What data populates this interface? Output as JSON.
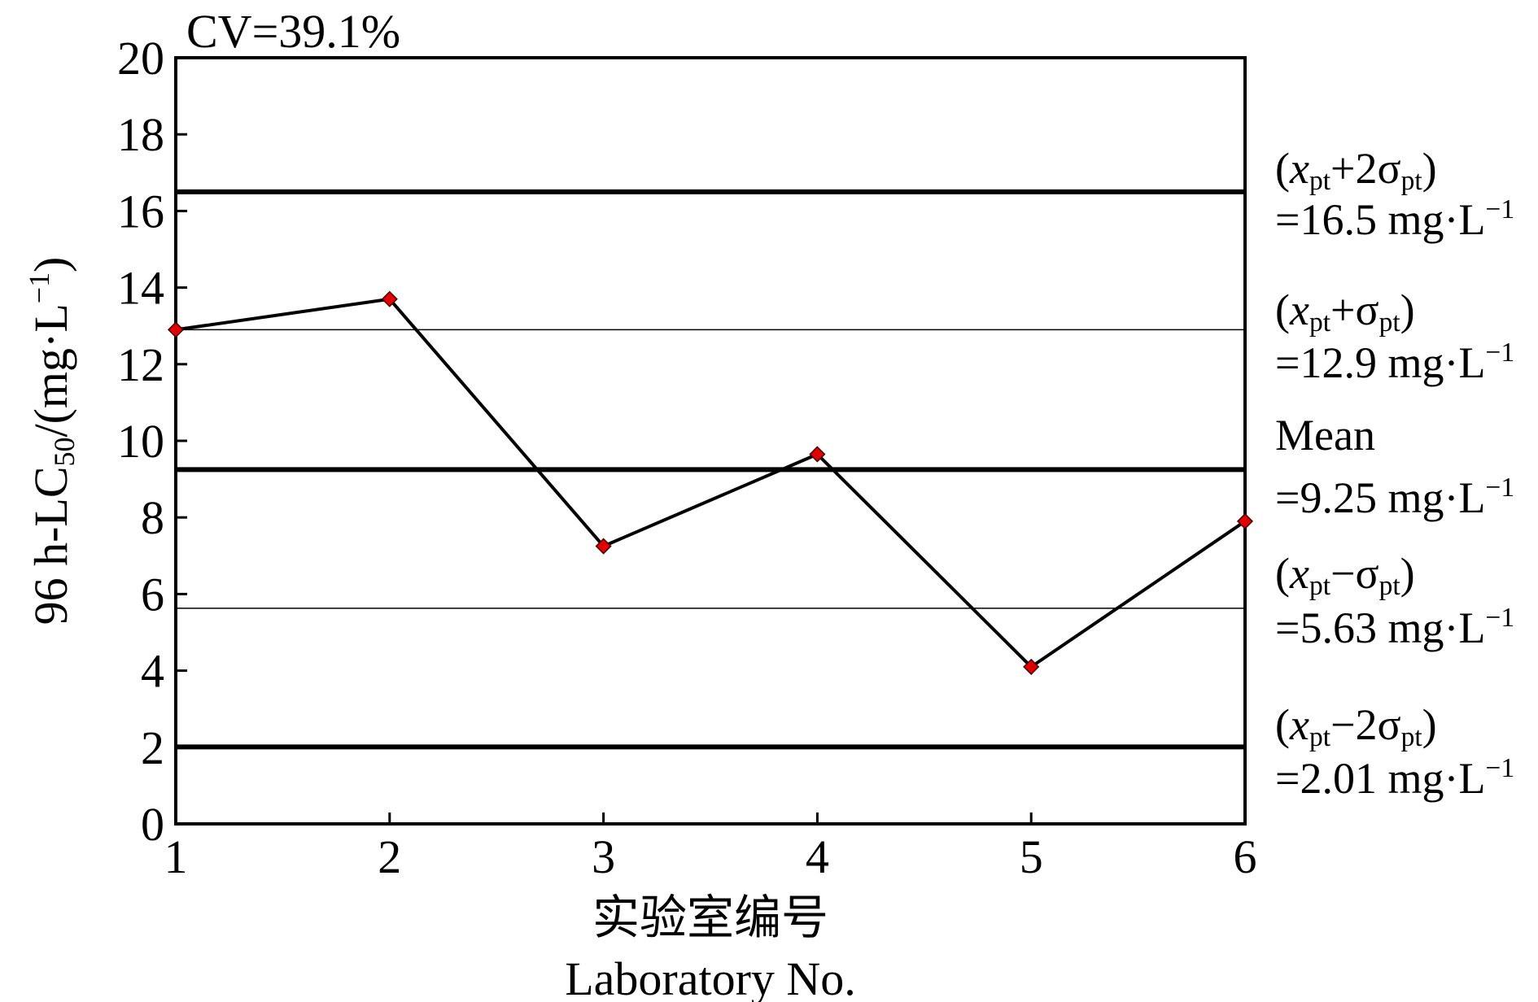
{
  "chart_data": {
    "type": "line",
    "annotation": "CV=39.1%",
    "y_label": [
      {
        "text": "96 h-LC"
      },
      {
        "text": "50",
        "style": "sub"
      },
      {
        "text": "/(mg·L"
      },
      {
        "text": "−1",
        "style": "sup"
      },
      {
        "text": ")"
      }
    ],
    "x_label": [
      "实验室编号",
      "Laboratory No."
    ],
    "x": [
      1,
      2,
      3,
      4,
      5,
      6
    ],
    "xlim": [
      1,
      6
    ],
    "xticks": [
      1,
      2,
      3,
      4,
      5,
      6
    ],
    "ylim": [
      0,
      20
    ],
    "yticks": [
      0,
      2,
      4,
      6,
      8,
      10,
      12,
      14,
      16,
      18,
      20
    ],
    "series": [
      {
        "color": "#e00000",
        "values": [
          12.9,
          13.7,
          7.25,
          9.65,
          4.1,
          7.9
        ]
      }
    ],
    "reference_lines": [
      {
        "value": 16.5,
        "style": "thick",
        "label": [
          {
            "text": "("
          },
          {
            "text": "x",
            "style": "italic"
          },
          {
            "text": "pt",
            "style": "sub"
          },
          {
            "text": "+2σ"
          },
          {
            "text": "pt",
            "style": "sub"
          },
          {
            "text": ")"
          }
        ],
        "value_label": [
          {
            "text": "=16.5 mg·L"
          },
          {
            "text": "−1",
            "style": "sup"
          }
        ]
      },
      {
        "value": 12.9,
        "style": "thin",
        "label": [
          {
            "text": "("
          },
          {
            "text": "x",
            "style": "italic"
          },
          {
            "text": "pt",
            "style": "sub"
          },
          {
            "text": "+σ"
          },
          {
            "text": "pt",
            "style": "sub"
          },
          {
            "text": ")"
          }
        ],
        "value_label": [
          {
            "text": "=12.9 mg·L"
          },
          {
            "text": "−1",
            "style": "sup"
          }
        ]
      },
      {
        "value": 9.25,
        "style": "thick",
        "label": [
          {
            "text": "Mean"
          }
        ],
        "value_label": [
          {
            "text": "=9.25 mg·L"
          },
          {
            "text": "−1",
            "style": "sup"
          }
        ]
      },
      {
        "value": 5.63,
        "style": "thin",
        "label": [
          {
            "text": "("
          },
          {
            "text": "x",
            "style": "italic"
          },
          {
            "text": "pt",
            "style": "sub"
          },
          {
            "text": "−σ"
          },
          {
            "text": "pt",
            "style": "sub"
          },
          {
            "text": ")"
          }
        ],
        "value_label": [
          {
            "text": "=5.63 mg·L"
          },
          {
            "text": "−1",
            "style": "sup"
          }
        ]
      },
      {
        "value": 2.01,
        "style": "thick",
        "label": [
          {
            "text": "("
          },
          {
            "text": "x",
            "style": "italic"
          },
          {
            "text": "pt",
            "style": "sub"
          },
          {
            "text": "−2σ"
          },
          {
            "text": "pt",
            "style": "sub"
          },
          {
            "text": ")"
          }
        ],
        "value_label": [
          {
            "text": "=2.01 mg·L"
          },
          {
            "text": "−1",
            "style": "sup"
          }
        ]
      }
    ]
  }
}
